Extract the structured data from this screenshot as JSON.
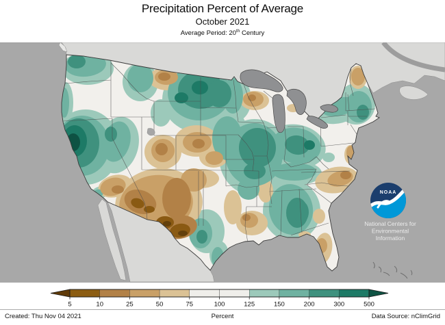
{
  "header": {
    "title": "Precipitation Percent of Average",
    "subtitle": "October 2021",
    "period": {
      "prefix": "Average Period: 20",
      "sup": "th",
      "suffix": " Century"
    }
  },
  "logo": {
    "acronym": "NOAA",
    "org_lines": [
      "National Centers for",
      "Environmental",
      "Information"
    ],
    "navy": "#1b3e6d",
    "azure": "#0098d8"
  },
  "colorbar": {
    "label": "Percent",
    "ticks": [
      "5",
      "10",
      "25",
      "50",
      "75",
      "100",
      "125",
      "150",
      "200",
      "300",
      "500"
    ],
    "segment_colors": [
      "#8c5d12",
      "#b28147",
      "#c9a067",
      "#dbc295",
      "#efeeea",
      "#efeeea",
      "#9cc9ba",
      "#6fb2a1",
      "#3f917e",
      "#1d7a66"
    ],
    "arrow_left_color": "#5f3a08",
    "arrow_right_color": "#0e5243"
  },
  "footer": {
    "created": "Created: Thu Nov 04 2021",
    "data_source": "Data Source: nClimGrid"
  },
  "map_colors": {
    "ocean": "#a8a8a8",
    "foreign_land": "#d9d9d7",
    "lake": "#8f9092",
    "us_base": "#f2f0ec",
    "wet_levels": [
      "#9cc9ba",
      "#6fb2a1",
      "#3f917e",
      "#1d7a66",
      "#0e5243"
    ],
    "dry_levels": [
      "#dbc295",
      "#c9a067",
      "#b28147",
      "#8a5a13",
      "#63400c"
    ]
  }
}
